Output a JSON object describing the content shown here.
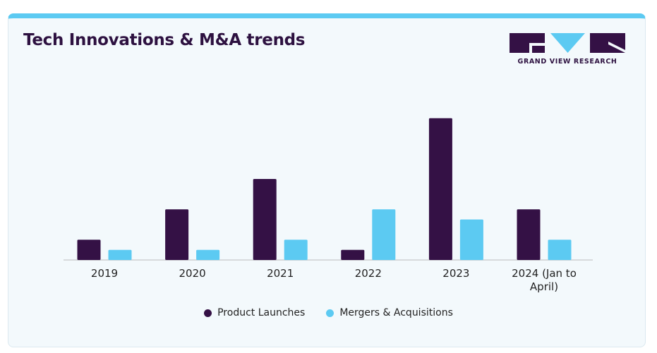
{
  "header": {
    "title": "Tech Innovations & M&A trends"
  },
  "logo": {
    "text": "GRAND VIEW RESEARCH",
    "icon": "gvr-logo-icon"
  },
  "colors": {
    "accent": "#5ccaf2",
    "dark": "#341145",
    "light": "#5ccaf2"
  },
  "chart_data": {
    "type": "bar",
    "categories": [
      "2019",
      "2020",
      "2021",
      "2022",
      "2023",
      "2024 (Jan to April)"
    ],
    "series": [
      {
        "name": "Product Launches",
        "values": [
          2,
          5,
          8,
          1,
          14,
          5
        ],
        "color": "#341145"
      },
      {
        "name": "Mergers & Acquisitions",
        "values": [
          1,
          1,
          2,
          5,
          4,
          2
        ],
        "color": "#5ccaf2"
      }
    ],
    "ylim": [
      0,
      16
    ],
    "grid": false,
    "legend": "bottom-center",
    "xlabel": "",
    "ylabel": ""
  }
}
